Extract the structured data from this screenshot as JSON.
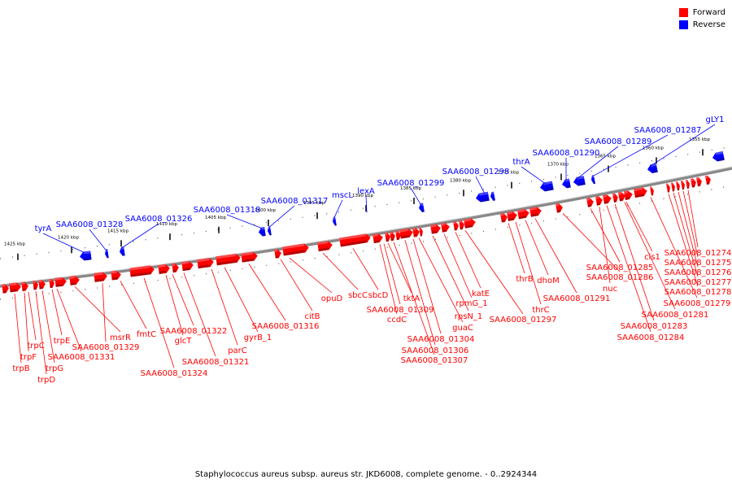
{
  "legend": {
    "forward_label": "Forward",
    "reverse_label": "Reverse",
    "forward_color": "#ff0000",
    "reverse_color": "#0000ff"
  },
  "caption": "Staphylococcus aureus subsp. aureus str. JKD6008, complete genome. - 0..2924344",
  "scale_ticks": [
    "1425 kbp",
    "1420 kbp",
    "1415 kbp",
    "1410 kbp",
    "1405 kbp",
    "1400 kbp",
    "1395 kbp",
    "1390 kbp",
    "1385 kbp",
    "1380 kbp",
    "1375 kbp",
    "1370 kbp",
    "1365 kbp",
    "1360 kbp",
    "1355 kbp"
  ],
  "reverse_labels": [
    "tyrA",
    "SAA6008_01328",
    "SAA6008_01326",
    "SAA6008_01318",
    "SAA6008_01317",
    "mscL",
    "lexA",
    "SAA6008_01299",
    "SAA6008_01298",
    "thrA",
    "SAA6008_01290",
    "SAA6008_01289",
    "SAA6008_01287",
    "gLY1"
  ],
  "forward_labels": [
    "trpB",
    "trpF",
    "trpC",
    "trpD",
    "trpG",
    "trpE",
    "SAA6008_01331",
    "msrR",
    "SAA6008_01329",
    "fmtC",
    "SAA6008_01324",
    "glcT",
    "SAA6008_01322",
    "SAA6008_01321",
    "parC",
    "gyrB_1",
    "SAA6008_01316",
    "citB",
    "opuD",
    "sbcC",
    "sbcD",
    "ccdC",
    "SAA6008_01309",
    "tktA",
    "SAA6008_01307",
    "SAA6008_01306",
    "SAA6008_01304",
    "guaC",
    "rpsN_1",
    "rpmG_1",
    "katE",
    "SAA6008_01297",
    "thrB",
    "thrC",
    "dhoM",
    "SAA6008_01291",
    "SAA6008_01286",
    "SAA6008_01285",
    "nuc",
    "SAA6008_01284",
    "SAA6008_01283",
    "SAA6008_01281",
    "cls1",
    "SAA6008_01279",
    "SAA6008_01278",
    "SAA6008_01277",
    "SAA6008_01276",
    "SAA6008_01275",
    "SAA6008_01274"
  ]
}
